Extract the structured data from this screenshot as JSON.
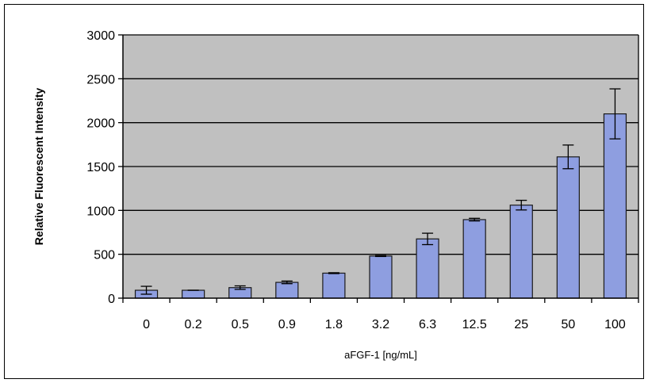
{
  "chart_data": {
    "type": "bar",
    "title": "",
    "xlabel": "aFGF-1 [ng/mL]",
    "ylabel": "Relative Fluorescent Intensity",
    "categories": [
      "0",
      "0.2",
      "0.5",
      "0.9",
      "1.8",
      "3.2",
      "6.3",
      "12.5",
      "25",
      "50",
      "100"
    ],
    "values": [
      90,
      90,
      120,
      180,
      285,
      480,
      675,
      895,
      1060,
      1610,
      2100
    ],
    "errors": [
      45,
      0,
      20,
      15,
      5,
      5,
      65,
      15,
      55,
      135,
      285
    ],
    "ylim": [
      0,
      3000
    ],
    "yticks": [
      0,
      500,
      1000,
      1500,
      2000,
      2500,
      3000
    ],
    "grid": true,
    "legend": "none",
    "colors": {
      "bar_fill": "#8e9ee0",
      "bar_edge": "#1a1a1a",
      "plot_background": "#c0c0c0",
      "gridline": "#000000"
    }
  }
}
